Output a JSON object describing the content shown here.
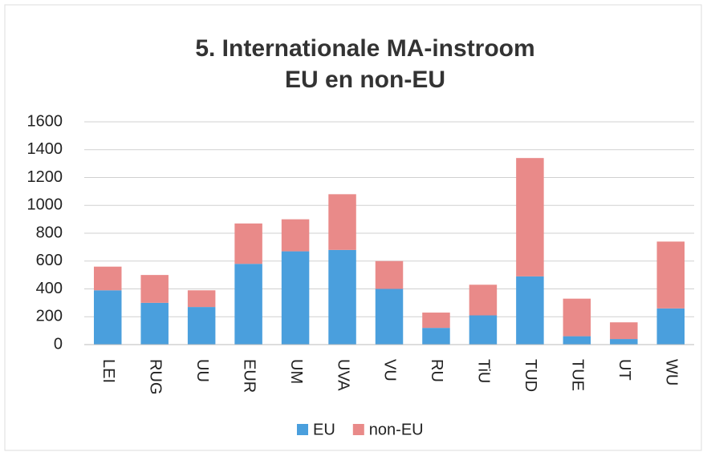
{
  "chart_data": {
    "type": "stacked_bar",
    "title": [
      "5. Internationale  MA-instroom",
      "EU en non-EU"
    ],
    "categories": [
      "LEI",
      "RUG",
      "UU",
      "EUR",
      "UM",
      "UVA",
      "VU",
      "RU",
      "TiU",
      "TUD",
      "TUE",
      "UT",
      "WU"
    ],
    "series": [
      {
        "name": "EU",
        "color": "#4a9fdd",
        "values": [
          390,
          300,
          270,
          580,
          670,
          680,
          400,
          120,
          210,
          490,
          60,
          40,
          260
        ]
      },
      {
        "name": "non-EU",
        "color": "#e98a89",
        "values": [
          170,
          200,
          120,
          290,
          230,
          400,
          200,
          110,
          220,
          850,
          270,
          120,
          480
        ]
      }
    ],
    "ylim": [
      0,
      1600
    ],
    "yticks": [
      0,
      200,
      400,
      600,
      800,
      1000,
      1200,
      1400,
      1600
    ],
    "grid": true,
    "legend": "bottom"
  }
}
